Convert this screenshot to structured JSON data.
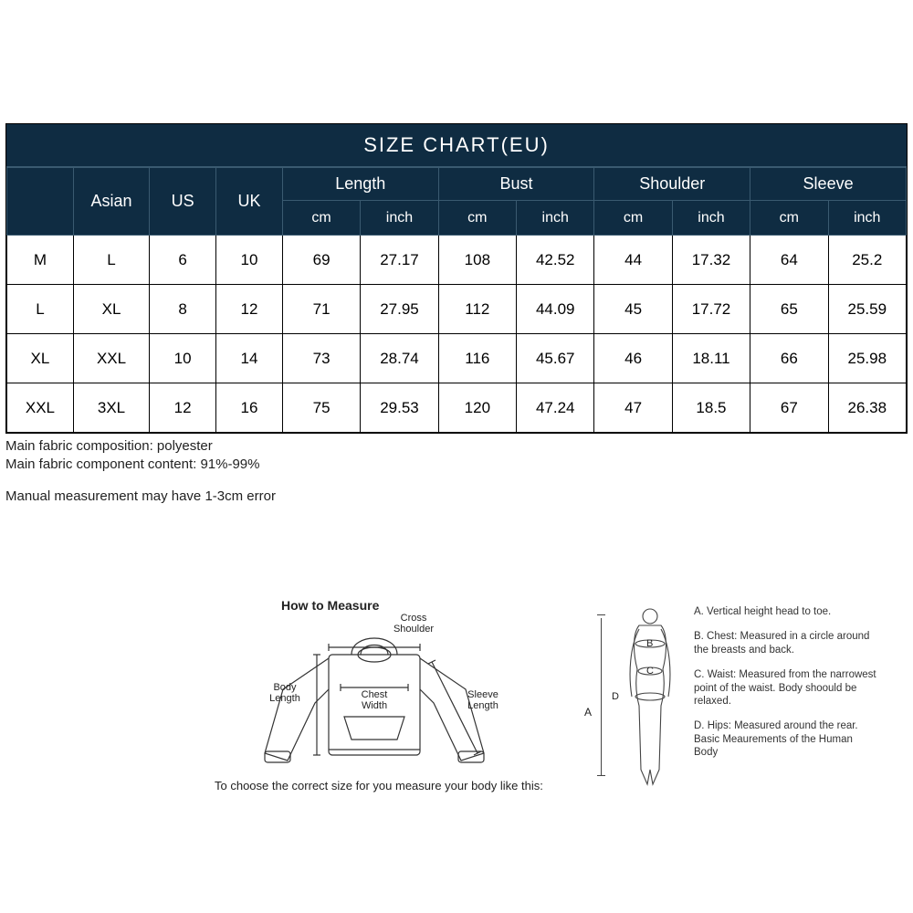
{
  "colors": {
    "header_bg": "#0f2c42",
    "header_text": "#ffffff",
    "header_border": "#3a5a70",
    "body_bg": "#ffffff",
    "body_text": "#000000",
    "cell_border": "#000000",
    "note_text": "#222222",
    "diagram_stroke": "#333333"
  },
  "title": "SIZE  CHART(EU)",
  "table": {
    "size_columns": [
      "",
      "Asian",
      "US",
      "UK"
    ],
    "measure_groups": [
      "Length",
      "Bust",
      "Shoulder",
      "Sleeve"
    ],
    "sub_units": [
      "cm",
      "inch"
    ],
    "rows": [
      {
        "size": "M",
        "asian": "L",
        "us": "6",
        "uk": "10",
        "length_cm": "69",
        "length_in": "27.17",
        "bust_cm": "108",
        "bust_in": "42.52",
        "shoulder_cm": "44",
        "shoulder_in": "17.32",
        "sleeve_cm": "64",
        "sleeve_in": "25.2"
      },
      {
        "size": "L",
        "asian": "XL",
        "us": "8",
        "uk": "12",
        "length_cm": "71",
        "length_in": "27.95",
        "bust_cm": "112",
        "bust_in": "44.09",
        "shoulder_cm": "45",
        "shoulder_in": "17.72",
        "sleeve_cm": "65",
        "sleeve_in": "25.59"
      },
      {
        "size": "XL",
        "asian": "XXL",
        "us": "10",
        "uk": "14",
        "length_cm": "73",
        "length_in": "28.74",
        "bust_cm": "116",
        "bust_in": "45.67",
        "shoulder_cm": "46",
        "shoulder_in": "18.11",
        "sleeve_cm": "66",
        "sleeve_in": "25.98"
      },
      {
        "size": "XXL",
        "asian": "3XL",
        "us": "12",
        "uk": "16",
        "length_cm": "75",
        "length_in": "29.53",
        "bust_cm": "120",
        "bust_in": "47.24",
        "shoulder_cm": "47",
        "shoulder_in": "18.5",
        "sleeve_cm": "67",
        "sleeve_in": "26.38"
      }
    ]
  },
  "notes": {
    "line1": "Main fabric composition: polyester",
    "line2": "Main fabric component content: 91%-99%",
    "line3": "Manual measurement may have 1-3cm error"
  },
  "howto": {
    "title": "How to Measure",
    "footer": "To choose the correct size for you measure your body like this:",
    "labels": {
      "cross_shoulder": "Cross\nShoulder",
      "body_length": "Body\nLength",
      "chest_width": "Chest\nWidth",
      "sleeve_length": "Sleeve\nLength"
    }
  },
  "figure": {
    "letters": {
      "A": "A",
      "B": "B",
      "C": "C",
      "D": "D"
    },
    "desc": {
      "A": "A. Vertical height head to toe.",
      "B": "B. Chest: Measured in a circle around the breasts and back.",
      "C": "C. Waist: Measured from the narrowest point of the waist. Body shoould be relaxed.",
      "D": "D. Hips: Measured around the rear. Basic Meaurements of the Human Body"
    }
  }
}
